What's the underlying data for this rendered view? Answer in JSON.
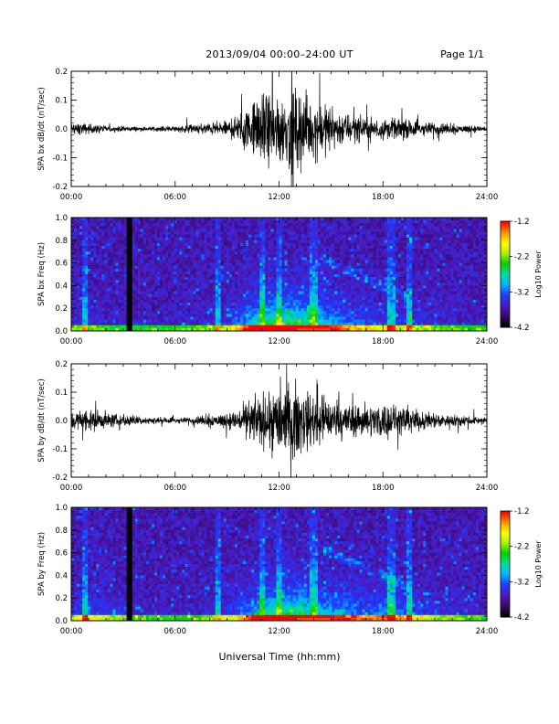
{
  "header": {
    "title": "2013/09/04  00:00–24:00 UT",
    "page": "Page 1/1"
  },
  "x_axis_title": "Universal Time (hh:mm)",
  "colorbar": {
    "label": "Log10 Power",
    "ticks": [
      "-1.2",
      "-2.2",
      "-3.2",
      "-4.2"
    ],
    "range": [
      -4.2,
      -1.2
    ],
    "colors": [
      "#000000",
      "#3a0a6e",
      "#4a1bbf",
      "#1e3cff",
      "#00b4ff",
      "#00e0a0",
      "#00d000",
      "#b0f000",
      "#ffff00",
      "#ff9000",
      "#ff0000"
    ]
  },
  "chart_data": [
    {
      "type": "line",
      "ylabel": "SPA bx dB/dt (nT/sec)",
      "xlim": [
        0,
        24
      ],
      "ylim": [
        -0.2,
        0.2
      ],
      "x_tick_labels": [
        "00:00",
        "06:00",
        "12:00",
        "18:00",
        "24:00"
      ],
      "y_tick_labels": [
        "0.2",
        "0.1",
        "0.0",
        "-0.1",
        "-0.2"
      ],
      "envelope_hours": [
        0,
        1,
        2,
        3,
        4,
        5,
        6,
        7,
        8,
        9,
        10,
        11,
        12,
        13,
        14,
        15,
        16,
        17,
        18,
        19,
        20,
        21,
        22,
        23,
        24
      ],
      "envelope_amplitude": [
        0.04,
        0.035,
        0.02,
        0.018,
        0.015,
        0.015,
        0.02,
        0.03,
        0.04,
        0.05,
        0.12,
        0.22,
        0.25,
        0.25,
        0.2,
        0.14,
        0.1,
        0.08,
        0.07,
        0.06,
        0.05,
        0.04,
        0.03,
        0.025,
        0.02
      ]
    },
    {
      "type": "heatmap",
      "ylabel": "SPA bx Freq (Hz)",
      "xlim": [
        0,
        24
      ],
      "ylim": [
        0,
        1.0
      ],
      "x_tick_labels": [
        "00:00",
        "06:00",
        "12:00",
        "18:00",
        "24:00"
      ],
      "y_tick_labels": [
        "1.0",
        "0.8",
        "0.6",
        "0.4",
        "0.2",
        "0.0"
      ],
      "data_gap_hours": [
        3.2,
        3.5
      ],
      "vertical_bursts_hours": [
        0.8,
        8.5,
        11.0,
        12.0,
        14.0,
        18.5,
        19.5
      ],
      "zrange_log10": [
        -4.2,
        -1.2
      ]
    },
    {
      "type": "line",
      "ylabel": "SPA by dB/dt (nT/sec)",
      "xlim": [
        0,
        24
      ],
      "ylim": [
        -0.2,
        0.2
      ],
      "x_tick_labels": [
        "00:00",
        "06:00",
        "12:00",
        "18:00",
        "24:00"
      ],
      "y_tick_labels": [
        "0.2",
        "0.1",
        "0.0",
        "-0.1",
        "-0.2"
      ],
      "envelope_hours": [
        0,
        1,
        2,
        3,
        4,
        5,
        6,
        7,
        8,
        9,
        10,
        11,
        12,
        13,
        14,
        15,
        16,
        17,
        18,
        19,
        20,
        21,
        22,
        23,
        24
      ],
      "envelope_amplitude": [
        0.06,
        0.08,
        0.05,
        0.04,
        0.03,
        0.02,
        0.02,
        0.02,
        0.04,
        0.05,
        0.1,
        0.18,
        0.24,
        0.24,
        0.17,
        0.14,
        0.12,
        0.1,
        0.12,
        0.1,
        0.07,
        0.05,
        0.04,
        0.03,
        0.02
      ]
    },
    {
      "type": "heatmap",
      "ylabel": "SPA by Freq (Hz)",
      "xlim": [
        0,
        24
      ],
      "ylim": [
        0,
        1.0
      ],
      "x_tick_labels": [
        "00:00",
        "06:00",
        "12:00",
        "18:00",
        "24:00"
      ],
      "y_tick_labels": [
        "1.0",
        "0.8",
        "0.6",
        "0.4",
        "0.2",
        "0.0"
      ],
      "data_gap_hours": [
        3.2,
        3.5
      ],
      "vertical_bursts_hours": [
        0.8,
        8.5,
        11.0,
        12.0,
        14.0,
        18.5,
        19.5
      ],
      "zrange_log10": [
        -4.2,
        -1.2
      ]
    }
  ]
}
